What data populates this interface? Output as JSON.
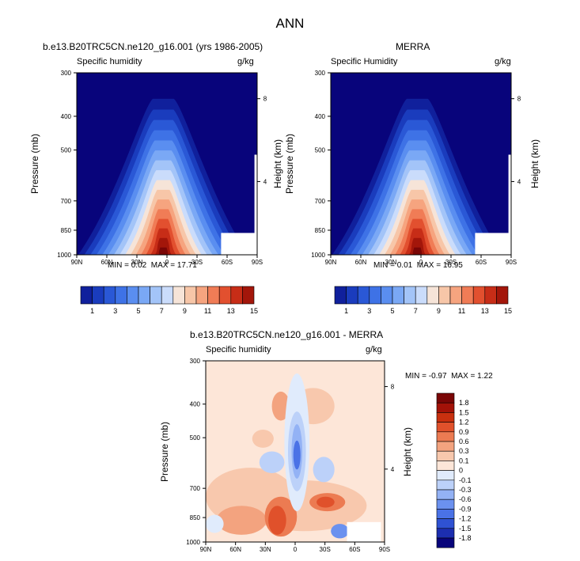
{
  "figure_title": "ANN",
  "palette": {
    "abs_colors": [
      "#08047b",
      "#10209c",
      "#1a3cbd",
      "#2a58d6",
      "#3e72e6",
      "#5a8ef0",
      "#7aa8f5",
      "#a3c4f8",
      "#cadcfb",
      "#f6e4d8",
      "#f7c6a8",
      "#f6a47f",
      "#f07c56",
      "#e2502f",
      "#c72d17",
      "#a3160a",
      "#7a0606"
    ],
    "diff_colors": [
      "#08047b",
      "#1c2eb0",
      "#2f52d3",
      "#4a72e6",
      "#6b91ef",
      "#93b2f5",
      "#bcd1f9",
      "#e0ebfc",
      "#fde6d8",
      "#f8c8ad",
      "#f3a37f",
      "#ec7b52",
      "#e0512b",
      "#c8300f",
      "#a31208",
      "#7a0606"
    ]
  },
  "chart_data": [
    {
      "type": "heatmap",
      "title": "b.e13.B20TRC5CN.ne120_g16.001 (yrs 1986-2005)",
      "left_label": "Specific humidity",
      "right_label": "g/kg",
      "ylabel": "Pressure (mb)",
      "ylabel_right": "Height (km)",
      "xticks": [
        "90N",
        "60N",
        "30N",
        "0",
        "30S",
        "60S",
        "90S"
      ],
      "yticks": [
        "300",
        "400",
        "500",
        "700",
        "850",
        "1000"
      ],
      "height_ticks": [
        "8",
        "4"
      ],
      "x": [
        90,
        -90
      ],
      "ylim": [
        300,
        1000
      ],
      "min_value": "0.02",
      "max_value": "17.71",
      "stats_text": {
        "min_label": "MIN =",
        "max_label": "MAX ="
      },
      "colorbar_ticks": [
        "1",
        "3",
        "5",
        "7",
        "9",
        "11",
        "13",
        "15"
      ]
    },
    {
      "type": "heatmap",
      "title": "MERRA",
      "left_label": "Specific Humidity",
      "right_label": "g/kg",
      "ylabel": "Pressure (mb)",
      "ylabel_right": "Height (km)",
      "xticks": [
        "90N",
        "60N",
        "30N",
        "0",
        "30S",
        "60S",
        "90S"
      ],
      "yticks": [
        "300",
        "400",
        "500",
        "700",
        "850",
        "1000"
      ],
      "height_ticks": [
        "8",
        "4"
      ],
      "x": [
        90,
        -90
      ],
      "ylim": [
        300,
        1000
      ],
      "min_value": "0.01",
      "max_value": "16.95",
      "stats_text": {
        "min_label": "MIN =",
        "max_label": "MAX ="
      },
      "colorbar_ticks": [
        "1",
        "3",
        "5",
        "7",
        "9",
        "11",
        "13",
        "15"
      ]
    },
    {
      "type": "heatmap",
      "title": "b.e13.B20TRC5CN.ne120_g16.001 - MERRA",
      "left_label": "Specific humidity",
      "right_label": "g/kg",
      "ylabel": "Pressure (mb)",
      "ylabel_right": "Height (km)",
      "xticks": [
        "90N",
        "60N",
        "30N",
        "0",
        "30S",
        "60S",
        "90S"
      ],
      "yticks": [
        "300",
        "400",
        "500",
        "700",
        "850",
        "1000"
      ],
      "height_ticks": [
        "8",
        "4"
      ],
      "x": [
        90,
        -90
      ],
      "ylim": [
        300,
        1000
      ],
      "min_value": "-0.97",
      "max_value": "1.22",
      "stats_text": {
        "min_label": "MIN =",
        "max_label": "MAX ="
      },
      "colorbar_ticks": [
        "1.8",
        "1.5",
        "1.2",
        "0.9",
        "0.6",
        "0.3",
        "0.1",
        "0",
        "-0.1",
        "-0.3",
        "-0.6",
        "-0.9",
        "-1.2",
        "-1.5",
        "-1.8"
      ]
    }
  ]
}
